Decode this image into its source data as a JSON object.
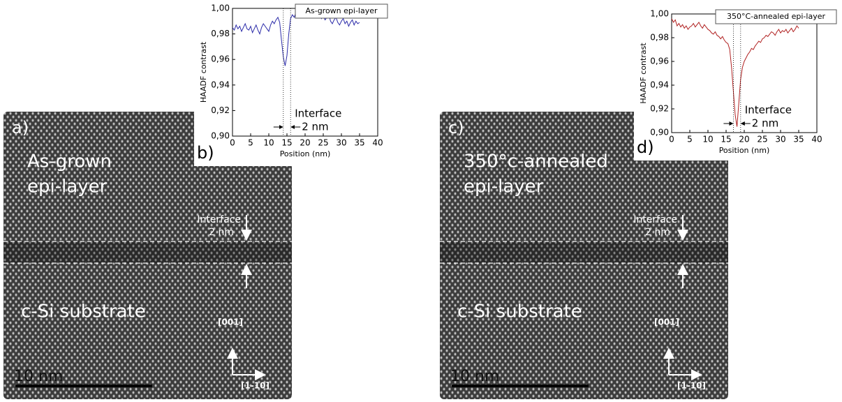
{
  "panels": [
    {
      "letter": "a)",
      "title_lines": [
        "As-grown",
        "epi-layer"
      ],
      "interface_label": "Interface",
      "interface_width": "2 nm",
      "substrate": "c-Si substrate",
      "axis_up": "[001]",
      "axis_right": "[1-10]",
      "scale_bar": "10 nm"
    },
    {
      "letter": "c)",
      "title_lines": [
        "350°c-annealed",
        "epi-layer"
      ],
      "interface_label": "Interface",
      "interface_width": "2 nm",
      "substrate": "c-Si substrate",
      "axis_up": "[001]",
      "axis_right": "[1-10]",
      "scale_bar": "10 nm"
    }
  ],
  "chart_data": [
    {
      "type": "line",
      "title": "As-grown epi-layer",
      "panel_letter": "b)",
      "xlabel": "Position (nm)",
      "ylabel": "HAADF contrast",
      "annotation": "Interface",
      "annotation_width": "2 nm",
      "interface_lines": [
        14,
        16
      ],
      "x": [
        0,
        0.5,
        1,
        1.5,
        2,
        2.5,
        3,
        3.5,
        4,
        4.5,
        5,
        5.5,
        6,
        6.5,
        7,
        7.5,
        8,
        8.5,
        9,
        9.5,
        10,
        10.5,
        11,
        11.5,
        12,
        12.5,
        13,
        13.5,
        14,
        14.5,
        15,
        15.5,
        16,
        16.5,
        17,
        17.5,
        18,
        18.5,
        19,
        19.5,
        20,
        20.5,
        21,
        21.5,
        22,
        22.5,
        23,
        23.5,
        24,
        24.5,
        25,
        25.5,
        26,
        26.5,
        27,
        27.5,
        28,
        28.5,
        29,
        29.5,
        30,
        30.5,
        31,
        31.5,
        32,
        32.5,
        33,
        33.5,
        34,
        34.5,
        35
      ],
      "series": [
        {
          "color": "#2a2aa8",
          "values": [
            0.985,
            0.983,
            0.987,
            0.984,
            0.986,
            0.982,
            0.985,
            0.988,
            0.984,
            0.983,
            0.986,
            0.981,
            0.984,
            0.987,
            0.983,
            0.98,
            0.985,
            0.988,
            0.986,
            0.984,
            0.982,
            0.987,
            0.99,
            0.988,
            0.991,
            0.993,
            0.989,
            0.975,
            0.962,
            0.955,
            0.963,
            0.98,
            0.992,
            0.995,
            0.993,
            0.997,
            0.994,
            0.996,
            0.998,
            0.993,
            0.995,
            0.997,
            0.995,
            0.998,
            0.994,
            0.996,
            0.993,
            0.995,
            0.997,
            0.992,
            0.994,
            0.991,
            0.993,
            0.996,
            0.99,
            0.988,
            0.991,
            0.993,
            0.989,
            0.987,
            0.99,
            0.992,
            0.988,
            0.99,
            0.986,
            0.989,
            0.991,
            0.987,
            0.99,
            0.988,
            0.989
          ]
        }
      ],
      "xlim": [
        0,
        40
      ],
      "ylim": [
        0.9,
        1.0
      ],
      "xticks": [
        0,
        5,
        10,
        15,
        20,
        25,
        30,
        35,
        40
      ],
      "yticks": [
        {
          "value": 0.9,
          "label": "0,90"
        },
        {
          "value": 0.92,
          "label": "0,92"
        },
        {
          "value": 0.94,
          "label": "0,94"
        },
        {
          "value": 0.96,
          "label": "0,96"
        },
        {
          "value": 0.98,
          "label": "0,98"
        },
        {
          "value": 1.0,
          "label": "1,00"
        }
      ]
    },
    {
      "type": "line",
      "title": "350°C-annealed epi-layer",
      "panel_letter": "d)",
      "xlabel": "Position (nm)",
      "ylabel": "HAADF contrast",
      "annotation": "Interface",
      "annotation_width": "2 nm",
      "interface_lines": [
        17,
        19
      ],
      "x": [
        0,
        0.5,
        1,
        1.5,
        2,
        2.5,
        3,
        3.5,
        4,
        4.5,
        5,
        5.5,
        6,
        6.5,
        7,
        7.5,
        8,
        8.5,
        9,
        9.5,
        10,
        10.5,
        11,
        11.5,
        12,
        12.5,
        13,
        13.5,
        14,
        14.5,
        15,
        15.5,
        16,
        16.5,
        17,
        17.5,
        18,
        18.5,
        19,
        19.5,
        20,
        20.5,
        21,
        21.5,
        22,
        22.5,
        23,
        23.5,
        24,
        24.5,
        25,
        25.5,
        26,
        26.5,
        27,
        27.5,
        28,
        28.5,
        29,
        29.5,
        30,
        30.5,
        31,
        31.5,
        32,
        32.5,
        33,
        33.5,
        34,
        34.5,
        35
      ],
      "series": [
        {
          "color": "#b02020",
          "values": [
            0.996,
            0.993,
            0.995,
            0.99,
            0.992,
            0.989,
            0.991,
            0.988,
            0.99,
            0.987,
            0.989,
            0.99,
            0.992,
            0.989,
            0.991,
            0.993,
            0.99,
            0.988,
            0.991,
            0.989,
            0.987,
            0.986,
            0.984,
            0.983,
            0.985,
            0.982,
            0.981,
            0.979,
            0.981,
            0.978,
            0.976,
            0.975,
            0.97,
            0.955,
            0.935,
            0.915,
            0.905,
            0.925,
            0.945,
            0.955,
            0.96,
            0.963,
            0.966,
            0.968,
            0.971,
            0.97,
            0.973,
            0.975,
            0.977,
            0.976,
            0.979,
            0.98,
            0.982,
            0.981,
            0.983,
            0.985,
            0.984,
            0.982,
            0.985,
            0.987,
            0.984,
            0.986,
            0.985,
            0.987,
            0.984,
            0.986,
            0.988,
            0.985,
            0.987,
            0.99,
            0.988
          ]
        }
      ],
      "xlim": [
        0,
        40
      ],
      "ylim": [
        0.9,
        1.0
      ],
      "xticks": [
        0,
        5,
        10,
        15,
        20,
        25,
        30,
        35,
        40
      ],
      "yticks": [
        {
          "value": 0.9,
          "label": "0,90"
        },
        {
          "value": 0.92,
          "label": "0,92"
        },
        {
          "value": 0.94,
          "label": "0,94"
        },
        {
          "value": 0.96,
          "label": "0,96"
        },
        {
          "value": 0.98,
          "label": "0,98"
        },
        {
          "value": 1.0,
          "label": "1,00"
        }
      ]
    }
  ]
}
